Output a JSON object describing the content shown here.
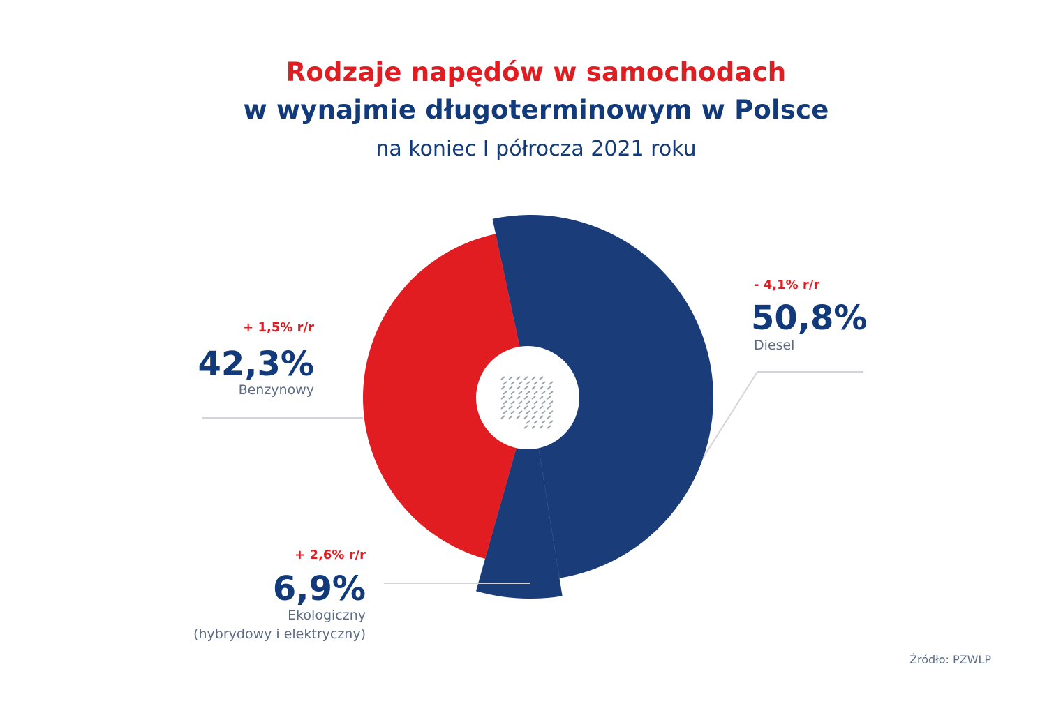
{
  "title": {
    "line1": "Rodzaje napędów w samochodach",
    "line2": "w wynajmie długoterminowym w Polsce",
    "subtitle": "na koniec I półrocza 2021 roku"
  },
  "chart_data": {
    "type": "pie",
    "title": "Rodzaje napędów w samochodach w wynajmie długoterminowym w Polsce",
    "subtitle": "na koniec I półrocza 2021 roku",
    "slices": [
      {
        "label": "Diesel",
        "value": 50.8,
        "value_label": "50,8%",
        "change": "- 4,1% r/r",
        "color": "#1a3c78"
      },
      {
        "label": "Ekologiczny (hybrydowy i elektryczny)",
        "label_lines": [
          "Ekologiczny",
          "(hybrydowy i elektryczny)"
        ],
        "value": 6.9,
        "value_label": "6,9%",
        "change": "+ 2,6% r/r",
        "color": "#1a3c78"
      },
      {
        "label": "Benzynowy",
        "value": 42.3,
        "value_label": "42,3%",
        "change": "+ 1,5% r/r",
        "color": "#e11d22"
      }
    ],
    "colors": {
      "accent_red": "#e11d22",
      "brand_blue": "#123a7a",
      "label_gray": "#5b6b85"
    }
  },
  "source": "Źródło: PZWLP"
}
